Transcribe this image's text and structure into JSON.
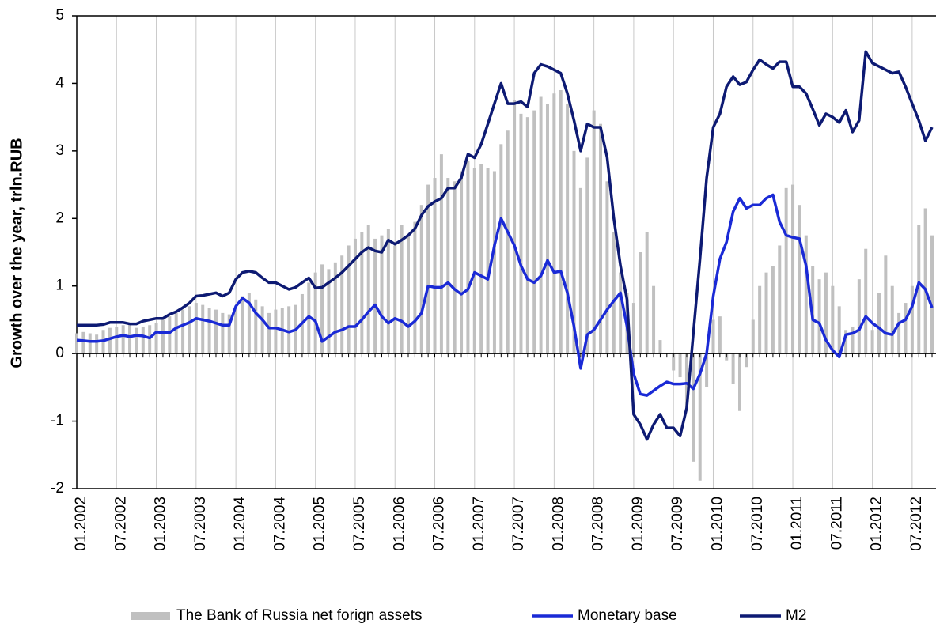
{
  "chart_data": {
    "type": "combo",
    "y_label": "Growth  over the year, trln.RUB",
    "categories": [
      "01.2002",
      null,
      null,
      null,
      null,
      null,
      "07.2002",
      null,
      null,
      null,
      null,
      null,
      "01.2003",
      null,
      null,
      null,
      null,
      null,
      "07.2003",
      null,
      null,
      null,
      null,
      null,
      "01.2004",
      null,
      null,
      null,
      null,
      null,
      "07.2004",
      null,
      null,
      null,
      null,
      null,
      "01.2005",
      null,
      null,
      null,
      null,
      null,
      "07.2005",
      null,
      null,
      null,
      null,
      null,
      "01.2006",
      null,
      null,
      null,
      null,
      null,
      "07.2006",
      null,
      null,
      null,
      null,
      null,
      "01.2007",
      null,
      null,
      null,
      null,
      null,
      "07.2007",
      null,
      null,
      null,
      null,
      null,
      "01.2008",
      null,
      null,
      null,
      null,
      null,
      "07.2008",
      null,
      null,
      null,
      null,
      null,
      "01.2009",
      null,
      null,
      null,
      null,
      null,
      "07.2009",
      null,
      null,
      null,
      null,
      null,
      "01.2010",
      null,
      null,
      null,
      null,
      null,
      "07.2010",
      null,
      null,
      null,
      null,
      null,
      "01.2011",
      null,
      null,
      null,
      null,
      null,
      "07.2011",
      null,
      null,
      null,
      null,
      null,
      "01.2012",
      null,
      null,
      null,
      null,
      null,
      "07.2012",
      null,
      null,
      null
    ],
    "series": [
      {
        "name": "The Bank of Russia net forign assets",
        "type": "bar",
        "color": "#c0c0c0",
        "values": [
          0.3,
          0.32,
          0.3,
          0.28,
          0.35,
          0.38,
          0.4,
          0.42,
          0.45,
          0.38,
          0.4,
          0.42,
          0.45,
          0.5,
          0.55,
          0.6,
          0.65,
          0.7,
          0.75,
          0.72,
          0.68,
          0.65,
          0.6,
          0.58,
          0.65,
          0.85,
          0.9,
          0.8,
          0.7,
          0.6,
          0.65,
          0.68,
          0.7,
          0.72,
          0.88,
          1.05,
          1.2,
          1.32,
          1.25,
          1.35,
          1.45,
          1.6,
          1.7,
          1.8,
          1.9,
          1.7,
          1.75,
          1.85,
          1.6,
          1.9,
          1.75,
          1.95,
          2.2,
          2.5,
          2.6,
          2.95,
          2.6,
          2.55,
          2.7,
          2.85,
          2.75,
          2.8,
          2.75,
          2.7,
          3.1,
          3.3,
          3.75,
          3.55,
          3.5,
          3.6,
          3.8,
          3.7,
          3.85,
          3.9,
          3.7,
          3.0,
          2.45,
          2.9,
          3.6,
          3.4,
          2.55,
          1.8,
          1.2,
          0.9,
          0.75,
          1.5,
          1.8,
          1.0,
          0.2,
          0.0,
          -0.25,
          -0.35,
          -0.85,
          -1.6,
          -1.88,
          -0.5,
          0.5,
          0.55,
          -0.1,
          -0.45,
          -0.85,
          -0.2,
          0.5,
          1.0,
          1.2,
          1.3,
          1.6,
          2.45,
          2.5,
          2.2,
          1.75,
          1.3,
          1.1,
          1.2,
          1.0,
          0.7,
          0.35,
          0.4,
          1.1,
          1.55,
          0.35,
          0.9,
          1.45,
          1.0,
          0.6,
          0.75,
          1.0,
          1.9,
          2.15,
          1.75
        ]
      },
      {
        "name": "Monetary base",
        "type": "line",
        "color": "#1a2ad6",
        "values": [
          0.2,
          0.19,
          0.18,
          0.18,
          0.19,
          0.22,
          0.25,
          0.27,
          0.25,
          0.27,
          0.26,
          0.23,
          0.32,
          0.31,
          0.31,
          0.38,
          0.42,
          0.46,
          0.52,
          0.5,
          0.48,
          0.45,
          0.42,
          0.42,
          0.7,
          0.82,
          0.75,
          0.6,
          0.5,
          0.38,
          0.38,
          0.35,
          0.32,
          0.35,
          0.45,
          0.55,
          0.48,
          0.18,
          0.25,
          0.32,
          0.35,
          0.4,
          0.4,
          0.5,
          0.62,
          0.72,
          0.55,
          0.45,
          0.52,
          0.48,
          0.4,
          0.48,
          0.6,
          1.0,
          0.98,
          0.98,
          1.05,
          0.95,
          0.88,
          0.95,
          1.2,
          1.15,
          1.1,
          1.6,
          2.0,
          1.8,
          1.6,
          1.3,
          1.1,
          1.05,
          1.15,
          1.38,
          1.2,
          1.22,
          0.9,
          0.4,
          -0.22,
          0.28,
          0.35,
          0.5,
          0.65,
          0.78,
          0.9,
          0.4,
          -0.3,
          -0.6,
          -0.62,
          -0.55,
          -0.48,
          -0.42,
          -0.45,
          -0.45,
          -0.44,
          -0.52,
          -0.3,
          0.0,
          0.85,
          1.4,
          1.65,
          2.1,
          2.3,
          2.15,
          2.2,
          2.2,
          2.3,
          2.35,
          1.95,
          1.75,
          1.72,
          1.7,
          1.3,
          0.5,
          0.45,
          0.2,
          0.05,
          -0.05,
          0.28,
          0.3,
          0.35,
          0.55,
          0.45,
          0.38,
          0.3,
          0.28,
          0.45,
          0.5,
          0.7,
          1.05,
          0.95,
          0.68
        ]
      },
      {
        "name": "M2",
        "type": "line",
        "color": "#0d1a73",
        "values": [
          0.42,
          0.42,
          0.42,
          0.42,
          0.43,
          0.46,
          0.46,
          0.46,
          0.44,
          0.44,
          0.48,
          0.5,
          0.52,
          0.52,
          0.58,
          0.62,
          0.68,
          0.75,
          0.85,
          0.86,
          0.88,
          0.9,
          0.85,
          0.9,
          1.1,
          1.2,
          1.22,
          1.2,
          1.12,
          1.05,
          1.05,
          1.0,
          0.95,
          0.98,
          1.05,
          1.12,
          0.97,
          0.98,
          1.05,
          1.12,
          1.2,
          1.3,
          1.4,
          1.5,
          1.57,
          1.52,
          1.5,
          1.68,
          1.62,
          1.68,
          1.75,
          1.85,
          2.05,
          2.18,
          2.25,
          2.3,
          2.45,
          2.45,
          2.6,
          2.95,
          2.9,
          3.1,
          3.4,
          3.7,
          4.0,
          3.7,
          3.7,
          3.73,
          3.65,
          4.15,
          4.28,
          4.25,
          4.2,
          4.15,
          3.85,
          3.45,
          3.0,
          3.4,
          3.35,
          3.35,
          2.9,
          2.0,
          1.3,
          0.8,
          -0.9,
          -1.05,
          -1.27,
          -1.05,
          -0.9,
          -1.1,
          -1.1,
          -1.22,
          -0.8,
          0.3,
          1.4,
          2.6,
          3.35,
          3.55,
          3.95,
          4.1,
          3.98,
          4.02,
          4.2,
          4.35,
          4.28,
          4.22,
          4.32,
          4.32,
          3.95,
          3.95,
          3.85,
          3.62,
          3.38,
          3.55,
          3.5,
          3.42,
          3.6,
          3.28,
          3.45,
          4.47,
          4.3,
          4.25,
          4.2,
          4.15,
          4.17,
          3.95,
          3.7,
          3.45,
          3.15,
          3.35
        ]
      }
    ],
    "ylim": [
      -2,
      5
    ],
    "yticks": [
      -2,
      -1,
      0,
      1,
      2,
      3,
      4,
      5
    ],
    "grid": true,
    "legend": "bottom"
  }
}
